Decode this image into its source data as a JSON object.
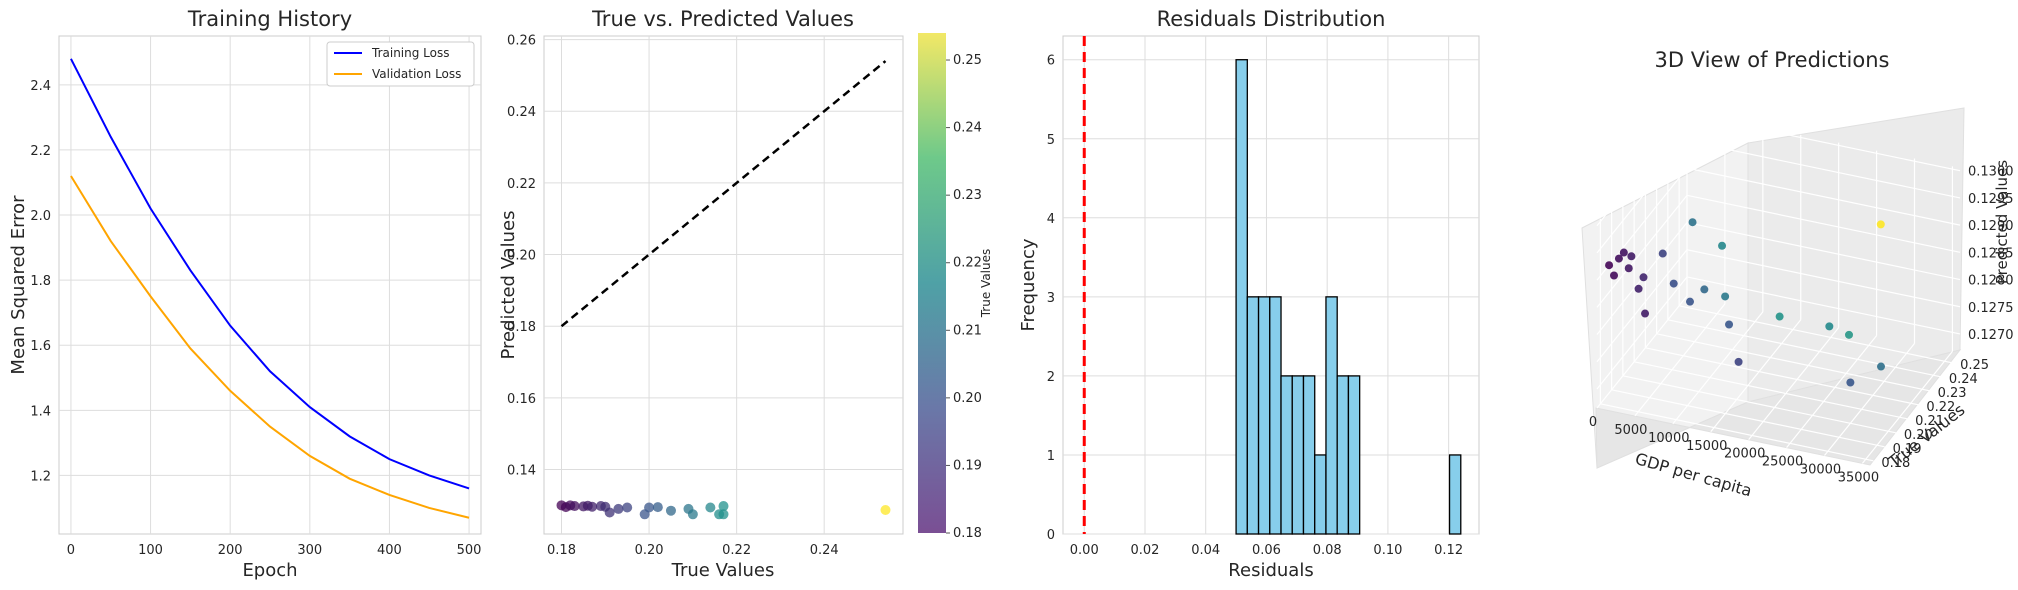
{
  "chart_data": [
    {
      "type": "line",
      "title": "Training History",
      "xlabel": "Epoch",
      "ylabel": "Mean Squared Error",
      "xlim": [
        -15,
        515
      ],
      "ylim": [
        1.02,
        2.55
      ],
      "xticks": [
        0,
        100,
        200,
        300,
        400,
        500
      ],
      "yticks": [
        1.2,
        1.4,
        1.6,
        1.8,
        2.0,
        2.2,
        2.4
      ],
      "ytick_labels": [
        "1.2",
        "1.4",
        "1.6",
        "1.8",
        "2.0",
        "2.2",
        "2.4"
      ],
      "grid": true,
      "legend": "top-right",
      "series": [
        {
          "name": "Training Loss",
          "color": "#0000ff",
          "x": [
            0,
            50,
            100,
            150,
            200,
            250,
            300,
            350,
            400,
            450,
            500
          ],
          "y": [
            2.48,
            2.24,
            2.02,
            1.83,
            1.66,
            1.52,
            1.41,
            1.32,
            1.25,
            1.2,
            1.16
          ]
        },
        {
          "name": "Validation Loss",
          "color": "#ffa500",
          "x": [
            0,
            50,
            100,
            150,
            200,
            250,
            300,
            350,
            400,
            450,
            500
          ],
          "y": [
            2.12,
            1.92,
            1.75,
            1.59,
            1.46,
            1.35,
            1.26,
            1.19,
            1.14,
            1.1,
            1.07
          ]
        }
      ]
    },
    {
      "type": "scatter",
      "title": "True vs. Predicted Values",
      "xlabel": "True Values",
      "ylabel": "Predicted Values",
      "xlim": [
        0.176,
        0.258
      ],
      "ylim": [
        0.122,
        0.261
      ],
      "xticks": [
        0.18,
        0.2,
        0.22,
        0.24
      ],
      "xtick_labels": [
        "0.18",
        "0.20",
        "0.22",
        "0.24"
      ],
      "yticks": [
        0.14,
        0.16,
        0.18,
        0.2,
        0.22,
        0.24,
        0.26
      ],
      "ytick_labels": [
        "0.14",
        "0.16",
        "0.18",
        "0.20",
        "0.22",
        "0.24",
        "0.26"
      ],
      "grid": true,
      "reference_line": {
        "x": [
          0.18,
          0.254
        ],
        "y": [
          0.18,
          0.254
        ],
        "style": "dashed",
        "color": "#000000"
      },
      "colorbar": {
        "label": "True Values",
        "range": [
          0.18,
          0.254
        ],
        "ticks": [
          0.18,
          0.19,
          0.2,
          0.21,
          0.22,
          0.23,
          0.24,
          0.25
        ],
        "tick_labels": [
          "0.18",
          "0.19",
          "0.20",
          "0.21",
          "0.22",
          "0.23",
          "0.24",
          "0.25"
        ],
        "colormap": "viridis"
      },
      "points": [
        [
          0.18,
          0.13
        ],
        [
          0.181,
          0.1295
        ],
        [
          0.182,
          0.13
        ],
        [
          0.183,
          0.1298
        ],
        [
          0.185,
          0.1297
        ],
        [
          0.186,
          0.1299
        ],
        [
          0.187,
          0.1296
        ],
        [
          0.189,
          0.1298
        ],
        [
          0.19,
          0.1296
        ],
        [
          0.191,
          0.128
        ],
        [
          0.193,
          0.129
        ],
        [
          0.195,
          0.1294
        ],
        [
          0.199,
          0.1275
        ],
        [
          0.2,
          0.1294
        ],
        [
          0.202,
          0.1295
        ],
        [
          0.205,
          0.1285
        ],
        [
          0.209,
          0.129
        ],
        [
          0.21,
          0.1275
        ],
        [
          0.214,
          0.1294
        ],
        [
          0.216,
          0.1275
        ],
        [
          0.217,
          0.1298
        ],
        [
          0.217,
          0.1275
        ],
        [
          0.254,
          0.1287
        ]
      ]
    },
    {
      "type": "bar",
      "title": "Residuals Distribution",
      "xlabel": "Residuals",
      "ylabel": "Frequency",
      "xlim": [
        -0.007,
        0.13
      ],
      "ylim": [
        0,
        6.3
      ],
      "xticks": [
        0.0,
        0.02,
        0.04,
        0.06,
        0.08,
        0.1,
        0.12
      ],
      "xtick_labels": [
        "0.00",
        "0.02",
        "0.04",
        "0.06",
        "0.08",
        "0.10",
        "0.12"
      ],
      "yticks": [
        0,
        1,
        2,
        3,
        4,
        5,
        6
      ],
      "ytick_labels": [
        "0",
        "1",
        "2",
        "3",
        "4",
        "5",
        "6"
      ],
      "grid": true,
      "bar_color": "#87ceeb",
      "reference_line": {
        "x": 0,
        "style": "dashed",
        "color": "#ff0000"
      },
      "bins_start": 0.05,
      "bin_width": 0.0037,
      "counts": [
        6,
        3,
        3,
        3,
        2,
        2,
        2,
        1,
        3,
        2,
        2,
        0,
        0,
        0,
        0,
        0,
        0,
        0,
        0,
        1
      ]
    },
    {
      "type": "scatter",
      "title": "3D View of Predictions",
      "xlabel": "GDP per capita",
      "ylabel": "True Values",
      "zlabel": "Predicted Values",
      "xticks": [
        0,
        5000,
        10000,
        15000,
        20000,
        25000,
        30000,
        35000
      ],
      "xtick_labels": [
        "0",
        "5000",
        "10000",
        "15000",
        "20000",
        "25000",
        "30000",
        "35000"
      ],
      "yticks": [
        0.18,
        0.19,
        0.2,
        0.21,
        0.22,
        0.23,
        0.24,
        0.25
      ],
      "ytick_labels": [
        "0.18",
        "0.19",
        "0.20",
        "0.21",
        "0.22",
        "0.23",
        "0.24",
        "0.25"
      ],
      "zticks": [
        0.127,
        0.1275,
        0.128,
        0.1285,
        0.129,
        0.1295,
        0.13
      ],
      "ztick_labels": [
        "0.1270",
        "0.1275",
        "0.1280",
        "0.1285",
        "0.1290",
        "0.1295",
        "0.1300"
      ],
      "colormap": "viridis",
      "points": [
        [
          1000,
          0.181,
          0.1292
        ],
        [
          1500,
          0.182,
          0.129
        ],
        [
          2000,
          0.183,
          0.1293
        ],
        [
          2500,
          0.184,
          0.1294
        ],
        [
          3000,
          0.185,
          0.1291
        ],
        [
          3200,
          0.186,
          0.1293
        ],
        [
          4000,
          0.187,
          0.1287
        ],
        [
          4500,
          0.188,
          0.1289
        ],
        [
          5000,
          0.186,
          0.1283
        ],
        [
          6000,
          0.195,
          0.1292
        ],
        [
          7000,
          0.198,
          0.1286
        ],
        [
          8000,
          0.208,
          0.1295
        ],
        [
          9000,
          0.199,
          0.1283
        ],
        [
          10000,
          0.205,
          0.1284
        ],
        [
          11000,
          0.214,
          0.129
        ],
        [
          12000,
          0.21,
          0.1282
        ],
        [
          14000,
          0.2,
          0.128
        ],
        [
          16000,
          0.195,
          0.1275
        ],
        [
          18000,
          0.218,
          0.1278
        ],
        [
          25000,
          0.215,
          0.1279
        ],
        [
          27000,
          0.219,
          0.1277
        ],
        [
          30000,
          0.2,
          0.1274
        ],
        [
          33000,
          0.207,
          0.1276
        ],
        [
          26000,
          0.254,
          0.1288
        ]
      ]
    }
  ]
}
